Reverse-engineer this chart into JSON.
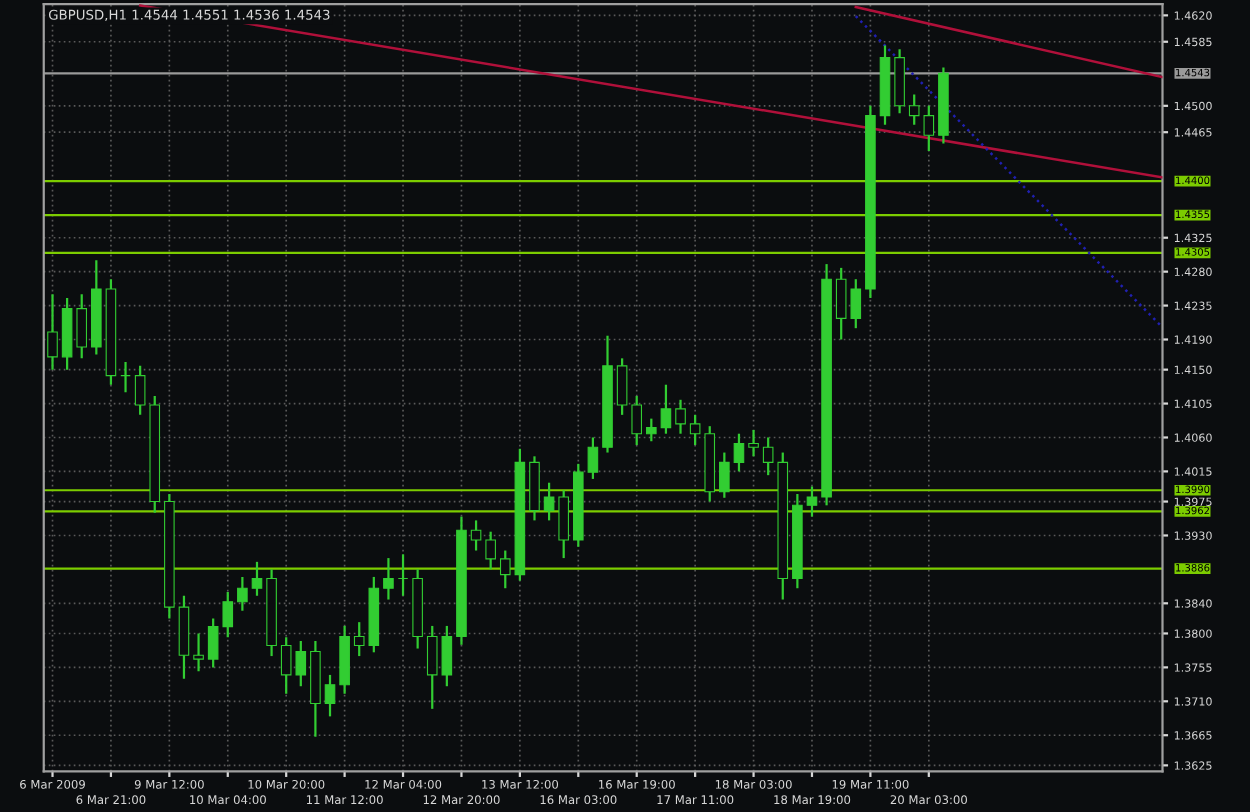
{
  "chart_data": {
    "type": "candlestick",
    "title": "GBPUSD,H1 1.4544 1.4551 1.4536 1.4543",
    "color": "#32cd32",
    "categories": [
      "6 Mar 2009",
      null,
      null,
      null,
      "6 Mar 21:00",
      null,
      null,
      null,
      "9 Mar 12:00",
      null,
      null,
      null,
      "10 Mar 04:00",
      null,
      null,
      null,
      "10 Mar 20:00",
      null,
      null,
      null,
      "11 Mar 12:00",
      null,
      null,
      null,
      "12 Mar 04:00",
      null,
      null,
      null,
      "12 Mar 20:00",
      null,
      null,
      null,
      "13 Mar 12:00",
      null,
      null,
      null,
      "16 Mar 03:00",
      null,
      null,
      null,
      "16 Mar 19:00",
      null,
      null,
      null,
      "17 Mar 11:00",
      null,
      null,
      null,
      "18 Mar 03:00",
      null,
      null,
      null,
      "18 Mar 19:00",
      null,
      null,
      null,
      "19 Mar 11:00",
      null,
      null,
      null,
      "20 Mar 03:00",
      null,
      null,
      null,
      null,
      null,
      null,
      null,
      null,
      null,
      null,
      null,
      null,
      null,
      null,
      null,
      null
    ],
    "ohlc": [
      [
        1.42,
        1.425,
        1.415,
        1.4167
      ],
      [
        1.4167,
        1.4245,
        1.415,
        1.4231
      ],
      [
        1.4231,
        1.425,
        1.4165,
        1.418
      ],
      [
        1.418,
        1.4295,
        1.417,
        1.4257
      ],
      [
        1.4257,
        1.427,
        1.413,
        1.4142
      ],
      [
        1.4142,
        1.416,
        1.412,
        1.4142
      ],
      [
        1.4142,
        1.4155,
        1.409,
        1.4103
      ],
      [
        1.4103,
        1.4115,
        1.396,
        1.3975
      ],
      [
        1.3975,
        1.3985,
        1.382,
        1.3835
      ],
      [
        1.3835,
        1.385,
        1.374,
        1.3771
      ],
      [
        1.3771,
        1.38,
        1.375,
        1.3766
      ],
      [
        1.3766,
        1.382,
        1.3755,
        1.3809
      ],
      [
        1.3809,
        1.3855,
        1.3795,
        1.3842
      ],
      [
        1.3842,
        1.3875,
        1.383,
        1.386
      ],
      [
        1.386,
        1.3895,
        1.385,
        1.3873
      ],
      [
        1.3873,
        1.3885,
        1.377,
        1.3784
      ],
      [
        1.3784,
        1.3795,
        1.372,
        1.3745
      ],
      [
        1.3745,
        1.379,
        1.373,
        1.3776
      ],
      [
        1.3776,
        1.379,
        1.3663,
        1.3707
      ],
      [
        1.3707,
        1.3745,
        1.369,
        1.3732
      ],
      [
        1.3732,
        1.381,
        1.372,
        1.3796
      ],
      [
        1.3796,
        1.3815,
        1.377,
        1.3784
      ],
      [
        1.3784,
        1.3875,
        1.3775,
        1.386
      ],
      [
        1.386,
        1.39,
        1.3845,
        1.3873
      ],
      [
        1.3873,
        1.3905,
        1.385,
        1.3873
      ],
      [
        1.3873,
        1.3885,
        1.378,
        1.3796
      ],
      [
        1.3796,
        1.381,
        1.37,
        1.3745
      ],
      [
        1.3745,
        1.381,
        1.373,
        1.3796
      ],
      [
        1.3796,
        1.3955,
        1.3785,
        1.3937
      ],
      [
        1.3937,
        1.395,
        1.391,
        1.3924
      ],
      [
        1.3924,
        1.3935,
        1.3885,
        1.3899
      ],
      [
        1.3899,
        1.391,
        1.386,
        1.3878
      ],
      [
        1.3878,
        1.4045,
        1.387,
        1.4027
      ],
      [
        1.4027,
        1.4035,
        1.395,
        1.3963
      ],
      [
        1.3963,
        1.4,
        1.395,
        1.3981
      ],
      [
        1.3981,
        1.399,
        1.39,
        1.3924
      ],
      [
        1.3924,
        1.4025,
        1.3915,
        1.4014
      ],
      [
        1.4014,
        1.406,
        1.4005,
        1.4047
      ],
      [
        1.4047,
        1.4195,
        1.404,
        1.4155
      ],
      [
        1.4155,
        1.4165,
        1.409,
        1.4103
      ],
      [
        1.4103,
        1.4115,
        1.405,
        1.4065
      ],
      [
        1.4065,
        1.4085,
        1.4055,
        1.4073
      ],
      [
        1.4073,
        1.413,
        1.4065,
        1.4098
      ],
      [
        1.4098,
        1.411,
        1.4065,
        1.4078
      ],
      [
        1.4078,
        1.409,
        1.405,
        1.4065
      ],
      [
        1.4065,
        1.4075,
        1.3975,
        1.3988
      ],
      [
        1.3988,
        1.404,
        1.398,
        1.4027
      ],
      [
        1.4027,
        1.4065,
        1.4015,
        1.4052
      ],
      [
        1.4052,
        1.407,
        1.4035,
        1.4047
      ],
      [
        1.4047,
        1.406,
        1.401,
        1.4027
      ],
      [
        1.4027,
        1.404,
        1.3845,
        1.3873
      ],
      [
        1.3873,
        1.3985,
        1.386,
        1.397
      ],
      [
        1.397,
        1.3995,
        1.3955,
        1.3981
      ],
      [
        1.3981,
        1.429,
        1.397,
        1.427
      ],
      [
        1.427,
        1.4285,
        1.419,
        1.4218
      ],
      [
        1.4218,
        1.427,
        1.4205,
        1.4257
      ],
      [
        1.4257,
        1.45,
        1.4245,
        1.4487
      ],
      [
        1.4487,
        1.458,
        1.4475,
        1.4564
      ],
      [
        1.4564,
        1.4575,
        1.449,
        1.45
      ],
      [
        1.45,
        1.4515,
        1.4475,
        1.4487
      ],
      [
        1.4487,
        1.45,
        1.444,
        1.4461
      ],
      [
        1.4461,
        1.4551,
        1.445,
        1.4543
      ],
      null,
      null,
      null,
      null,
      null,
      null,
      null,
      null,
      null,
      null,
      null,
      null,
      null,
      null,
      null
    ],
    "series": [
      {
        "type": "line",
        "values": [
          null,
          null,
          null,
          null,
          null,
          null,
          1.4633,
          null,
          null,
          null,
          null,
          null,
          null,
          null,
          null,
          null,
          null,
          null,
          null,
          null,
          null,
          null,
          null,
          null,
          null,
          null,
          null,
          null,
          null,
          null,
          null,
          null,
          null,
          null,
          null,
          null,
          null,
          null,
          null,
          null,
          null,
          null,
          null,
          null,
          null,
          null,
          null,
          null,
          null,
          null,
          null,
          null,
          null,
          null,
          null,
          null,
          null,
          null,
          null,
          null,
          null,
          null,
          null,
          null,
          null,
          null,
          null,
          null,
          null,
          null,
          null,
          null,
          null,
          null,
          null,
          null,
          1.4405
        ],
        "color": "#b0103a",
        "line_style": "solid"
      },
      {
        "type": "line",
        "values": [
          null,
          null,
          null,
          null,
          null,
          null,
          null,
          null,
          null,
          null,
          null,
          null,
          null,
          null,
          null,
          null,
          null,
          null,
          null,
          null,
          null,
          null,
          null,
          null,
          null,
          null,
          null,
          null,
          null,
          null,
          null,
          null,
          null,
          null,
          null,
          null,
          null,
          null,
          null,
          null,
          null,
          null,
          null,
          null,
          null,
          null,
          null,
          null,
          null,
          null,
          null,
          null,
          null,
          null,
          null,
          1.4631,
          null,
          null,
          null,
          null,
          null,
          null,
          null,
          null,
          null,
          null,
          null,
          null,
          null,
          null,
          null,
          null,
          null,
          null,
          null,
          null,
          1.4538
        ],
        "color": "#b0103a",
        "line_style": "solid"
      },
      {
        "type": "line",
        "values": [
          null,
          null,
          null,
          null,
          null,
          null,
          null,
          null,
          null,
          null,
          null,
          null,
          null,
          null,
          null,
          null,
          null,
          null,
          null,
          null,
          null,
          null,
          null,
          null,
          null,
          null,
          null,
          null,
          null,
          null,
          null,
          null,
          null,
          null,
          null,
          null,
          null,
          null,
          null,
          null,
          null,
          null,
          null,
          null,
          null,
          null,
          null,
          null,
          null,
          null,
          null,
          null,
          null,
          null,
          null,
          1.4619,
          null,
          null,
          null,
          null,
          null,
          null,
          null,
          null,
          null,
          null,
          null,
          null,
          null,
          null,
          null,
          null,
          null,
          null,
          null,
          null,
          1.4206
        ],
        "color": "#2020b0",
        "line_style": "dotted"
      }
    ],
    "ylim": [
      1.3617,
      1.4635
    ],
    "yticks": [
      {
        "value": 1.462,
        "label": "1.4620"
      },
      {
        "value": 1.4585,
        "label": "1.4585"
      },
      {
        "value": 1.45,
        "label": "1.4500"
      },
      {
        "value": 1.4465,
        "label": "1.4465"
      },
      {
        "value": 1.4325,
        "label": "1.4325"
      },
      {
        "value": 1.428,
        "label": "1.4280"
      },
      {
        "value": 1.4235,
        "label": "1.4235"
      },
      {
        "value": 1.419,
        "label": "1.4190"
      },
      {
        "value": 1.415,
        "label": "1.4150"
      },
      {
        "value": 1.4105,
        "label": "1.4105"
      },
      {
        "value": 1.406,
        "label": "1.4060"
      },
      {
        "value": 1.4015,
        "label": "1.4015"
      },
      {
        "value": 1.3975,
        "label": "1.3975"
      },
      {
        "value": 1.393,
        "label": "1.3930"
      },
      {
        "value": 1.384,
        "label": "1.3840"
      },
      {
        "value": 1.38,
        "label": "1.3800"
      },
      {
        "value": 1.3755,
        "label": "1.3755"
      },
      {
        "value": 1.371,
        "label": "1.3710"
      },
      {
        "value": 1.3665,
        "label": "1.3665"
      },
      {
        "value": 1.3625,
        "label": "1.3625"
      }
    ],
    "grid": true,
    "ref_lines": [
      {
        "axis": "y",
        "value": 1.4543,
        "label": "1.4543",
        "color": "#9a9a9a"
      },
      {
        "axis": "y",
        "value": 1.44,
        "label": "1.4400",
        "color": "#7ccc00"
      },
      {
        "axis": "y",
        "value": 1.4355,
        "label": "1.4355",
        "color": "#7ccc00"
      },
      {
        "axis": "y",
        "value": 1.4305,
        "label": "1.4305",
        "color": "#7ccc00"
      },
      {
        "axis": "y",
        "value": 1.399,
        "label": "1.3990",
        "color": "#7ccc00"
      },
      {
        "axis": "y",
        "value": 1.3962,
        "label": "1.3962",
        "color": "#7ccc00"
      },
      {
        "axis": "y",
        "value": 1.3886,
        "label": "1.3886",
        "color": "#7ccc00"
      }
    ]
  }
}
